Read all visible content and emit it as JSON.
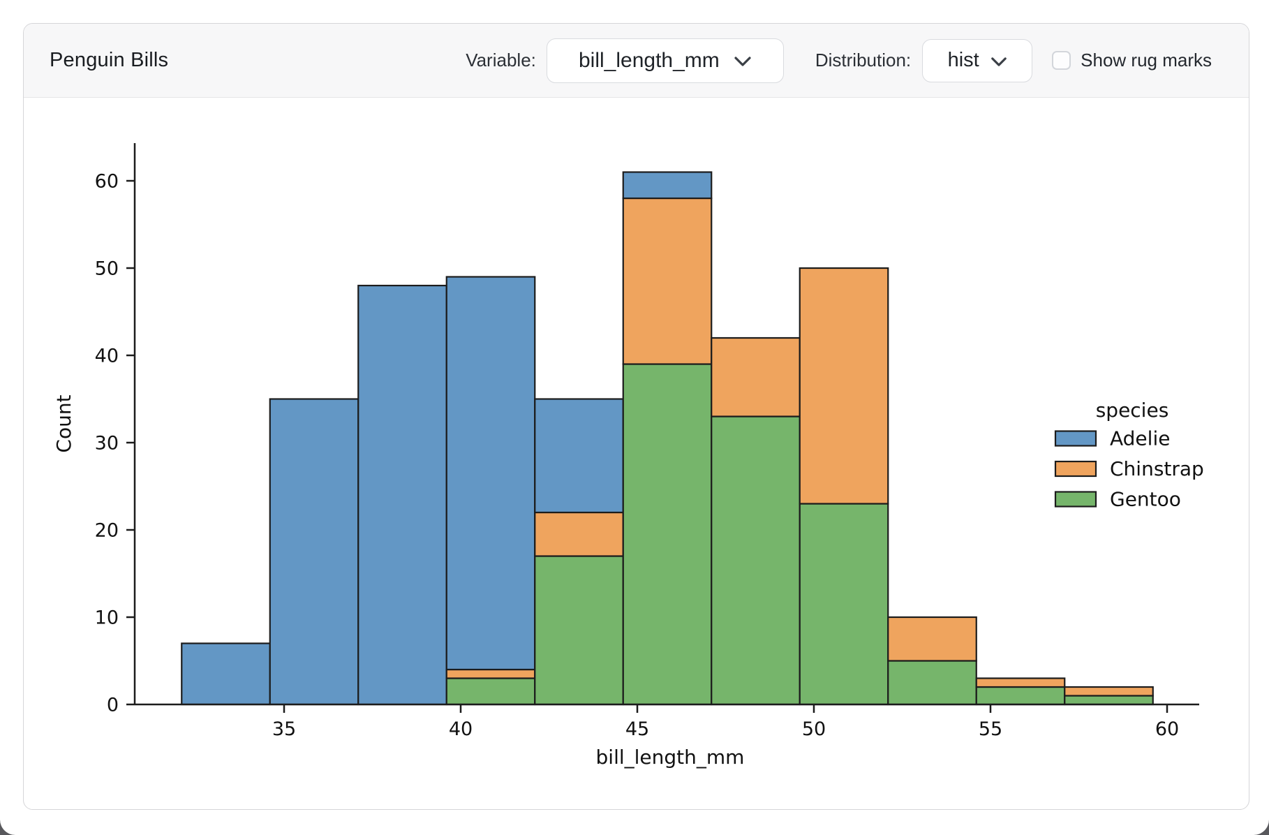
{
  "header": {
    "title": "Penguin Bills",
    "variable_label": "Variable:",
    "variable_value": "bill_length_mm",
    "distribution_label": "Distribution:",
    "distribution_value": "hist",
    "rug_label": "Show rug marks",
    "rug_checked": false
  },
  "chart_data": {
    "type": "bar",
    "subtype": "stacked-histogram",
    "xlabel": "bill_length_mm",
    "ylabel": "Count",
    "legend_title": "species",
    "legend_position": "right",
    "grid": false,
    "x_ticks": [
      35,
      40,
      45,
      50,
      55,
      60
    ],
    "y_ticks": [
      0,
      10,
      20,
      30,
      40,
      50,
      60
    ],
    "ylim": [
      0,
      64
    ],
    "bin_edges": [
      32.1,
      34.6,
      37.1,
      39.6,
      42.1,
      44.6,
      47.1,
      49.6,
      52.1,
      54.6,
      57.1,
      59.6
    ],
    "stack_order_bottom_to_top": [
      "Gentoo",
      "Chinstrap",
      "Adelie"
    ],
    "series": [
      {
        "name": "Adelie",
        "color": "#6397c5",
        "values": [
          7,
          35,
          48,
          45,
          13,
          3,
          0,
          0,
          0,
          0,
          0
        ]
      },
      {
        "name": "Chinstrap",
        "color": "#efa45e",
        "values": [
          0,
          0,
          0,
          1,
          5,
          19,
          9,
          27,
          5,
          1,
          1
        ]
      },
      {
        "name": "Gentoo",
        "color": "#76b56b",
        "values": [
          0,
          0,
          0,
          3,
          17,
          39,
          33,
          23,
          5,
          2,
          1
        ]
      }
    ],
    "bin_totals": [
      7,
      35,
      48,
      49,
      35,
      61,
      42,
      50,
      10,
      3,
      2
    ],
    "bar_edge_color": "#1c1c1c"
  }
}
